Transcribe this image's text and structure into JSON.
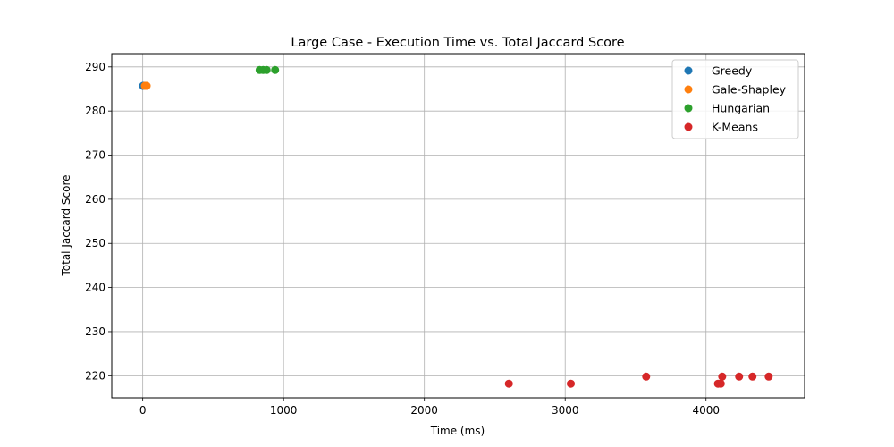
{
  "chart_data": {
    "type": "scatter",
    "title": "Large Case - Execution Time vs. Total Jaccard Score",
    "xlabel": "Time (ms)",
    "ylabel": "Total Jaccard Score",
    "xlim": [
      -220,
      4700
    ],
    "ylim": [
      215,
      293
    ],
    "xticks": [
      0,
      1000,
      2000,
      3000,
      4000
    ],
    "yticks": [
      220,
      230,
      240,
      250,
      260,
      270,
      280,
      290
    ],
    "grid": true,
    "legend_position": "top-right",
    "series": [
      {
        "name": "Greedy",
        "color": "#1f77b4",
        "points": [
          [
            2,
            285.7
          ],
          [
            5,
            285.7
          ],
          [
            8,
            285.7
          ],
          [
            12,
            285.7
          ]
        ]
      },
      {
        "name": "Gale-Shapley",
        "color": "#ff7f0e",
        "points": [
          [
            15,
            285.7
          ],
          [
            18,
            285.7
          ],
          [
            22,
            285.7
          ],
          [
            28,
            285.7
          ]
        ]
      },
      {
        "name": "Hungarian",
        "color": "#2ca02c",
        "points": [
          [
            830,
            289.3
          ],
          [
            855,
            289.3
          ],
          [
            880,
            289.3
          ],
          [
            940,
            289.3
          ]
        ]
      },
      {
        "name": "K-Means",
        "color": "#d62728",
        "points": [
          [
            2600,
            218.2
          ],
          [
            3040,
            218.2
          ],
          [
            3575,
            219.8
          ],
          [
            4085,
            218.2
          ],
          [
            4105,
            218.2
          ],
          [
            4115,
            219.8
          ],
          [
            4235,
            219.8
          ],
          [
            4330,
            219.8
          ],
          [
            4445,
            219.8
          ]
        ]
      }
    ]
  }
}
